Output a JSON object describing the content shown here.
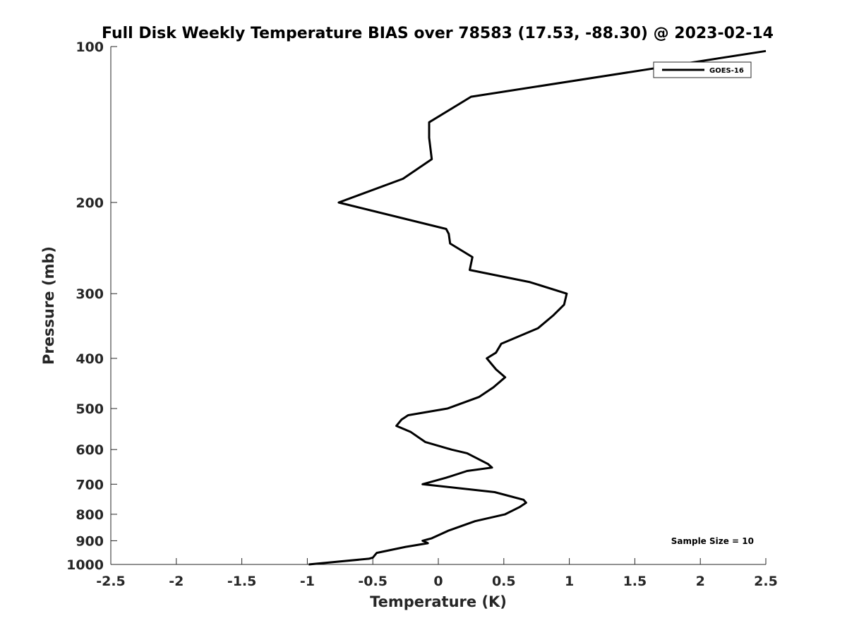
{
  "chart_data": {
    "type": "line",
    "title": "Full Disk Weekly Temperature BIAS over 78583 (17.53, -88.30) @ 2023-02-14",
    "xlabel": "Temperature (K)",
    "ylabel": "Pressure (mb)",
    "xlim": [
      -2.5,
      2.5
    ],
    "ylim": [
      1000,
      100
    ],
    "yscale": "log",
    "grid": false,
    "legend_position": "top-right",
    "x_ticks": [
      "-2.5",
      "-2",
      "-1.5",
      "-1",
      "-0.5",
      "0",
      "0.5",
      "1",
      "1.5",
      "2",
      "2.5"
    ],
    "x_tick_values": [
      -2.5,
      -2,
      -1.5,
      -1,
      -0.5,
      0,
      0.5,
      1,
      1.5,
      2,
      2.5
    ],
    "y_ticks": [
      "100",
      "200",
      "300",
      "400",
      "500",
      "600",
      "700",
      "800",
      "900",
      "1000"
    ],
    "y_tick_values": [
      100,
      200,
      300,
      400,
      500,
      600,
      700,
      800,
      900,
      1000
    ],
    "annotation": "Sample Size = 10",
    "series": [
      {
        "name": "GOES-16",
        "color": "#000000",
        "points": [
          {
            "p": 1000,
            "t": -0.99
          },
          {
            "p": 975,
            "t": -0.53
          },
          {
            "p": 970,
            "t": -0.5
          },
          {
            "p": 950,
            "t": -0.47
          },
          {
            "p": 925,
            "t": -0.25
          },
          {
            "p": 910,
            "t": -0.08
          },
          {
            "p": 900,
            "t": -0.12
          },
          {
            "p": 890,
            "t": -0.05
          },
          {
            "p": 860,
            "t": 0.08
          },
          {
            "p": 825,
            "t": 0.28
          },
          {
            "p": 800,
            "t": 0.51
          },
          {
            "p": 775,
            "t": 0.62
          },
          {
            "p": 760,
            "t": 0.67
          },
          {
            "p": 750,
            "t": 0.65
          },
          {
            "p": 725,
            "t": 0.43
          },
          {
            "p": 700,
            "t": -0.12
          },
          {
            "p": 680,
            "t": 0.06
          },
          {
            "p": 660,
            "t": 0.22
          },
          {
            "p": 650,
            "t": 0.41
          },
          {
            "p": 640,
            "t": 0.38
          },
          {
            "p": 610,
            "t": 0.22
          },
          {
            "p": 600,
            "t": 0.1
          },
          {
            "p": 580,
            "t": -0.1
          },
          {
            "p": 555,
            "t": -0.21
          },
          {
            "p": 540,
            "t": -0.32
          },
          {
            "p": 525,
            "t": -0.28
          },
          {
            "p": 515,
            "t": -0.23
          },
          {
            "p": 500,
            "t": 0.07
          },
          {
            "p": 475,
            "t": 0.31
          },
          {
            "p": 455,
            "t": 0.42
          },
          {
            "p": 435,
            "t": 0.51
          },
          {
            "p": 420,
            "t": 0.44
          },
          {
            "p": 400,
            "t": 0.37
          },
          {
            "p": 390,
            "t": 0.44
          },
          {
            "p": 375,
            "t": 0.48
          },
          {
            "p": 350,
            "t": 0.76
          },
          {
            "p": 330,
            "t": 0.88
          },
          {
            "p": 315,
            "t": 0.96
          },
          {
            "p": 300,
            "t": 0.98
          },
          {
            "p": 285,
            "t": 0.7
          },
          {
            "p": 270,
            "t": 0.24
          },
          {
            "p": 255,
            "t": 0.26
          },
          {
            "p": 240,
            "t": 0.09
          },
          {
            "p": 230,
            "t": 0.08
          },
          {
            "p": 225,
            "t": 0.06
          },
          {
            "p": 200,
            "t": -0.76
          },
          {
            "p": 180,
            "t": -0.27
          },
          {
            "p": 165,
            "t": -0.05
          },
          {
            "p": 150,
            "t": -0.07
          },
          {
            "p": 140,
            "t": -0.07
          },
          {
            "p": 125,
            "t": 0.25
          },
          {
            "p": 102,
            "t": 2.5
          }
        ]
      }
    ]
  }
}
